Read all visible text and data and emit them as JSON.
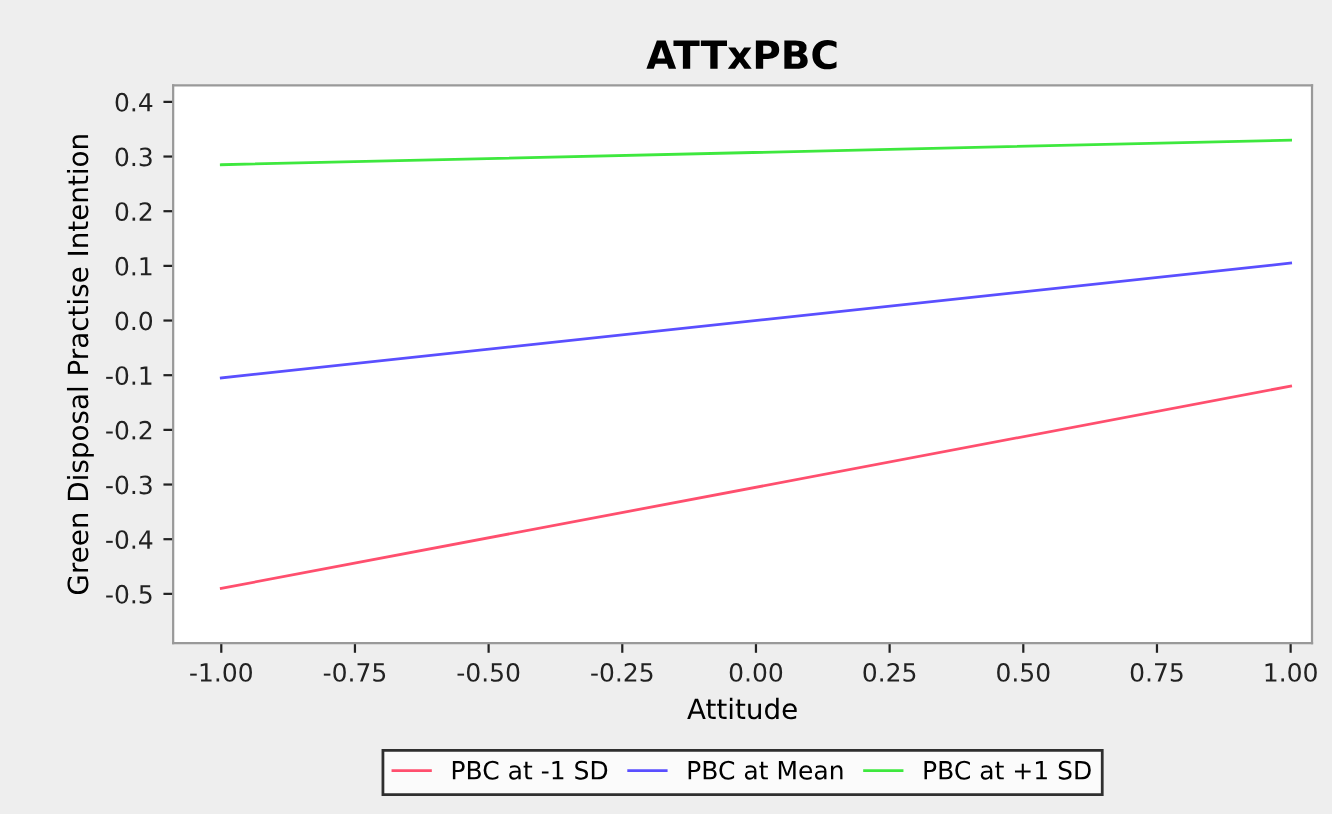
{
  "chart_data": {
    "type": "line",
    "title": "ATTxPBC",
    "xlabel": "Attitude",
    "ylabel": "Green Disposal Practise Intention",
    "x": [
      -1.0,
      1.0
    ],
    "series": [
      {
        "name": "PBC at -1 SD",
        "color": "#ff4f6e",
        "values": [
          -0.49,
          -0.12
        ]
      },
      {
        "name": "PBC at Mean",
        "color": "#5a4fff",
        "values": [
          -0.105,
          0.105
        ]
      },
      {
        "name": "PBC at +1 SD",
        "color": "#3ee83e",
        "values": [
          0.285,
          0.33
        ]
      }
    ],
    "xlim": [
      -1.09,
      1.04
    ],
    "ylim": [
      -0.59,
      0.43
    ],
    "xticks": [
      {
        "value": -1.0,
        "label": "-1.00"
      },
      {
        "value": -0.75,
        "label": "-0.75"
      },
      {
        "value": -0.5,
        "label": "-0.50"
      },
      {
        "value": -0.25,
        "label": "-0.25"
      },
      {
        "value": 0.0,
        "label": "0.00"
      },
      {
        "value": 0.25,
        "label": "0.25"
      },
      {
        "value": 0.5,
        "label": "0.50"
      },
      {
        "value": 0.75,
        "label": "0.75"
      },
      {
        "value": 1.0,
        "label": "1.00"
      }
    ],
    "yticks": [
      0.4,
      0.3,
      0.2,
      0.1,
      {
        "value": 0,
        "label": "0.0"
      },
      -0.1,
      -0.2,
      -0.3,
      -0.4,
      -0.5
    ],
    "grid": false,
    "legend": "bottom",
    "marker": "none",
    "line_style": "solid"
  }
}
